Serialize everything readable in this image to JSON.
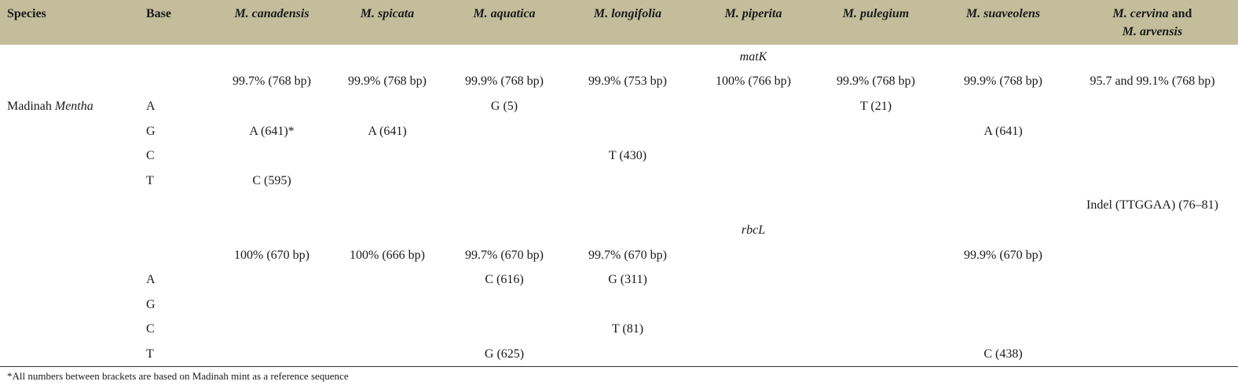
{
  "header": {
    "species": "Species",
    "base": "Base",
    "m_canadensis": "M. canadensis",
    "m_spicata": "M. spicata",
    "m_aquatica": "M. aquatica",
    "m_longifolia": "M. longifolia",
    "m_piperita": "M. piperita",
    "m_pulegium": "M. pulegium",
    "m_suaveolens": "M. suaveolens",
    "m_cervina": "M. cervina",
    "and_word": " and",
    "m_arvensis": "M. arvensis"
  },
  "matk": {
    "section": "matK",
    "identity": [
      "99.7% (768 bp)",
      "99.9% (768 bp)",
      "99.9% (768 bp)",
      "99.9% (753 bp)",
      "100% (766 bp)",
      "99.9% (768 bp)",
      "99.9% (768 bp)",
      "95.7 and 99.1% (768 bp)"
    ],
    "species_label_prefix": "Madinah ",
    "species_label_genus": "Mentha",
    "rows": [
      {
        "base": "A",
        "cells": [
          "",
          "",
          "G (5)",
          "",
          "",
          "T (21)",
          "",
          ""
        ]
      },
      {
        "base": "G",
        "cells": [
          "A (641)*",
          "A (641)",
          "",
          "",
          "",
          "",
          "A (641)",
          ""
        ]
      },
      {
        "base": "C",
        "cells": [
          "",
          "",
          "",
          "T (430)",
          "",
          "",
          "",
          ""
        ]
      },
      {
        "base": "T",
        "cells": [
          "C (595)",
          "",
          "",
          "",
          "",
          "",
          "",
          ""
        ]
      }
    ],
    "indel": "Indel (TTGGAA) (76–81)"
  },
  "rbcl": {
    "section": "rbcL",
    "identity": [
      "100% (670 bp)",
      "100% (666 bp)",
      "99.7% (670 bp)",
      "99.7% (670 bp)",
      "",
      "",
      "99.9% (670 bp)",
      ""
    ],
    "rows": [
      {
        "base": "A",
        "cells": [
          "",
          "",
          "C (616)",
          "G (311)",
          "",
          "",
          "",
          ""
        ]
      },
      {
        "base": "G",
        "cells": [
          "",
          "",
          "",
          "",
          "",
          "",
          "",
          ""
        ]
      },
      {
        "base": "C",
        "cells": [
          "",
          "",
          "",
          "T (81)",
          "",
          "",
          "",
          ""
        ]
      },
      {
        "base": "T",
        "cells": [
          "",
          "",
          "G (625)",
          "",
          "",
          "",
          "C (438)",
          ""
        ]
      }
    ]
  },
  "footnote": "*All numbers between brackets are based on Madinah mint as a reference sequence"
}
